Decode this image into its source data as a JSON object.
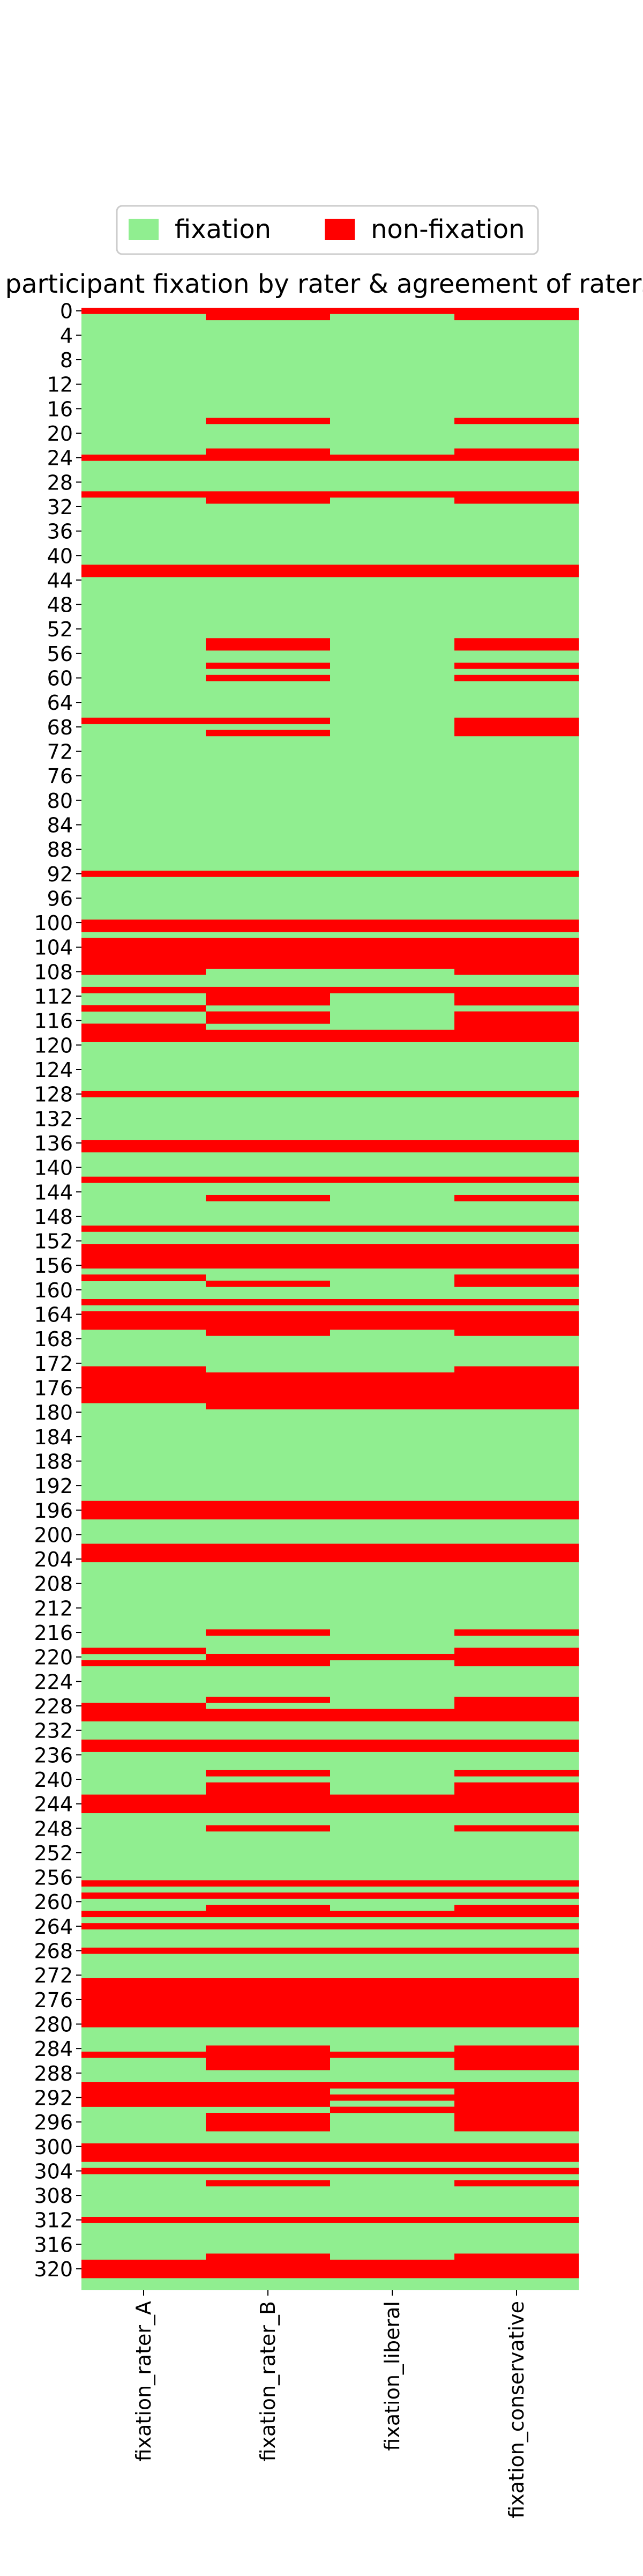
{
  "chart_data": {
    "type": "heatmap",
    "title": "participant fixation by rater & agreement of raters",
    "xlabel": "",
    "ylabel": "",
    "columns": [
      "fixation_rater_A",
      "fixation_rater_B",
      "fixation_liberal",
      "fixation_conservative"
    ],
    "row_count": 324,
    "y_tick_step": 4,
    "legend": {
      "placement": "top-center",
      "items": [
        {
          "label": "fixation",
          "value": 0,
          "color": "#90EE90"
        },
        {
          "label": "non-fixation",
          "value": 1,
          "color": "#FF0000"
        }
      ]
    },
    "non_fixation_ranges": {
      "fixation_rater_A": [
        [
          0,
          0
        ],
        [
          24,
          24
        ],
        [
          30,
          30
        ],
        [
          42,
          43
        ],
        [
          67,
          67
        ],
        [
          92,
          92
        ],
        [
          100,
          101
        ],
        [
          103,
          108
        ],
        [
          111,
          111
        ],
        [
          114,
          114
        ],
        [
          117,
          119
        ],
        [
          128,
          128
        ],
        [
          136,
          137
        ],
        [
          142,
          142
        ],
        [
          150,
          150
        ],
        [
          153,
          156
        ],
        [
          158,
          158
        ],
        [
          162,
          162
        ],
        [
          164,
          166
        ],
        [
          173,
          178
        ],
        [
          195,
          197
        ],
        [
          202,
          204
        ],
        [
          219,
          219
        ],
        [
          221,
          221
        ],
        [
          228,
          230
        ],
        [
          234,
          235
        ],
        [
          243,
          245
        ],
        [
          257,
          257
        ],
        [
          259,
          259
        ],
        [
          262,
          262
        ],
        [
          264,
          264
        ],
        [
          268,
          268
        ],
        [
          273,
          280
        ],
        [
          285,
          285
        ],
        [
          290,
          293
        ],
        [
          300,
          302
        ],
        [
          304,
          304
        ],
        [
          312,
          312
        ],
        [
          319,
          321
        ]
      ],
      "fixation_rater_B": [
        [
          0,
          1
        ],
        [
          18,
          18
        ],
        [
          23,
          24
        ],
        [
          30,
          31
        ],
        [
          42,
          43
        ],
        [
          54,
          55
        ],
        [
          58,
          58
        ],
        [
          60,
          60
        ],
        [
          67,
          67
        ],
        [
          69,
          69
        ],
        [
          92,
          92
        ],
        [
          100,
          101
        ],
        [
          103,
          107
        ],
        [
          111,
          113
        ],
        [
          115,
          116
        ],
        [
          118,
          119
        ],
        [
          128,
          128
        ],
        [
          136,
          137
        ],
        [
          142,
          142
        ],
        [
          145,
          145
        ],
        [
          150,
          150
        ],
        [
          153,
          156
        ],
        [
          159,
          159
        ],
        [
          162,
          162
        ],
        [
          164,
          167
        ],
        [
          174,
          179
        ],
        [
          195,
          197
        ],
        [
          202,
          204
        ],
        [
          216,
          216
        ],
        [
          220,
          221
        ],
        [
          227,
          227
        ],
        [
          229,
          230
        ],
        [
          234,
          235
        ],
        [
          239,
          239
        ],
        [
          241,
          245
        ],
        [
          248,
          248
        ],
        [
          257,
          257
        ],
        [
          259,
          259
        ],
        [
          261,
          262
        ],
        [
          264,
          264
        ],
        [
          268,
          268
        ],
        [
          273,
          280
        ],
        [
          284,
          287
        ],
        [
          290,
          293
        ],
        [
          295,
          297
        ],
        [
          300,
          302
        ],
        [
          304,
          304
        ],
        [
          306,
          306
        ],
        [
          312,
          312
        ],
        [
          318,
          321
        ]
      ],
      "fixation_liberal": [
        [
          0,
          0
        ],
        [
          24,
          24
        ],
        [
          30,
          30
        ],
        [
          42,
          43
        ],
        [
          92,
          92
        ],
        [
          100,
          101
        ],
        [
          103,
          107
        ],
        [
          111,
          111
        ],
        [
          118,
          119
        ],
        [
          128,
          128
        ],
        [
          136,
          137
        ],
        [
          142,
          142
        ],
        [
          150,
          150
        ],
        [
          153,
          156
        ],
        [
          162,
          162
        ],
        [
          164,
          166
        ],
        [
          174,
          179
        ],
        [
          195,
          197
        ],
        [
          202,
          204
        ],
        [
          220,
          220
        ],
        [
          229,
          230
        ],
        [
          234,
          235
        ],
        [
          243,
          245
        ],
        [
          257,
          257
        ],
        [
          259,
          259
        ],
        [
          262,
          262
        ],
        [
          264,
          264
        ],
        [
          268,
          268
        ],
        [
          273,
          280
        ],
        [
          285,
          285
        ],
        [
          290,
          290
        ],
        [
          292,
          292
        ],
        [
          294,
          294
        ],
        [
          300,
          302
        ],
        [
          304,
          304
        ],
        [
          312,
          312
        ],
        [
          319,
          321
        ]
      ],
      "fixation_conservative": [
        [
          0,
          1
        ],
        [
          18,
          18
        ],
        [
          23,
          24
        ],
        [
          30,
          31
        ],
        [
          42,
          43
        ],
        [
          54,
          55
        ],
        [
          58,
          58
        ],
        [
          60,
          60
        ],
        [
          67,
          69
        ],
        [
          92,
          92
        ],
        [
          100,
          101
        ],
        [
          103,
          108
        ],
        [
          111,
          113
        ],
        [
          115,
          116
        ],
        [
          117,
          119
        ],
        [
          128,
          128
        ],
        [
          136,
          137
        ],
        [
          142,
          142
        ],
        [
          145,
          145
        ],
        [
          150,
          150
        ],
        [
          153,
          156
        ],
        [
          158,
          159
        ],
        [
          162,
          162
        ],
        [
          164,
          167
        ],
        [
          173,
          179
        ],
        [
          195,
          197
        ],
        [
          202,
          204
        ],
        [
          216,
          216
        ],
        [
          219,
          221
        ],
        [
          227,
          230
        ],
        [
          234,
          235
        ],
        [
          239,
          239
        ],
        [
          241,
          245
        ],
        [
          248,
          248
        ],
        [
          257,
          257
        ],
        [
          259,
          259
        ],
        [
          261,
          262
        ],
        [
          264,
          264
        ],
        [
          268,
          268
        ],
        [
          273,
          280
        ],
        [
          284,
          287
        ],
        [
          290,
          297
        ],
        [
          300,
          302
        ],
        [
          304,
          304
        ],
        [
          306,
          306
        ],
        [
          312,
          312
        ],
        [
          318,
          321
        ]
      ]
    }
  }
}
